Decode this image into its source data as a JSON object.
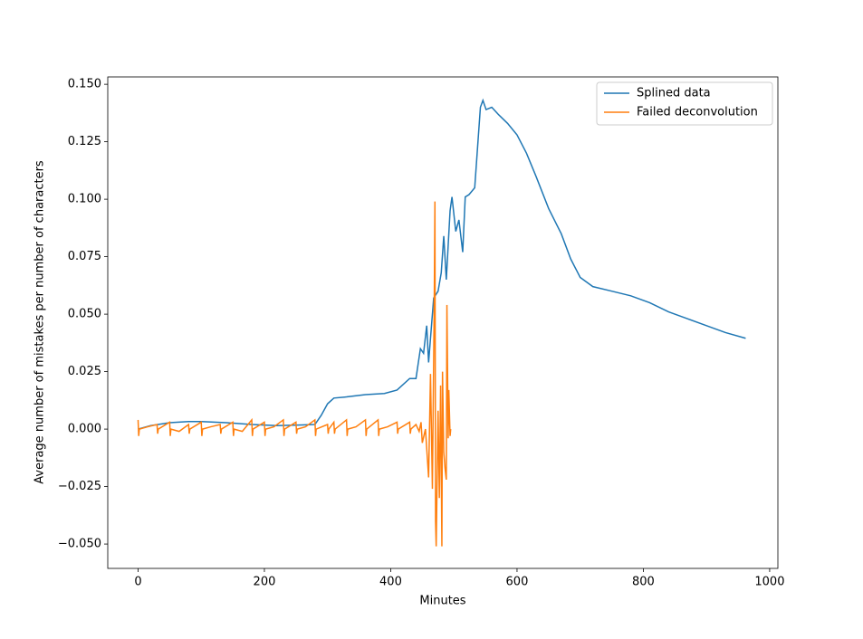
{
  "chart_data": {
    "type": "line",
    "xlabel": "Minutes",
    "ylabel": "Average number of mistakes per number of characters",
    "xlim": [
      -48,
      1013
    ],
    "ylim": [
      -0.0606,
      0.1532
    ],
    "xticks": [
      0,
      200,
      400,
      600,
      800,
      1000
    ],
    "yticks": [
      {
        "value": -0.05,
        "label": "−0.050"
      },
      {
        "value": -0.025,
        "label": "−0.025"
      },
      {
        "value": 0,
        "label": "0.000"
      },
      {
        "value": 0.025,
        "label": "0.025"
      },
      {
        "value": 0.05,
        "label": "0.050"
      },
      {
        "value": 0.075,
        "label": "0.075"
      },
      {
        "value": 0.1,
        "label": "0.100"
      },
      {
        "value": 0.125,
        "label": "0.125"
      },
      {
        "value": 0.15,
        "label": "0.150"
      }
    ],
    "legend": "upper right",
    "series": [
      {
        "name": "Splined data",
        "color": "#1f77b4",
        "x": [
          0,
          20,
          50,
          80,
          100,
          140,
          180,
          220,
          260,
          280,
          290,
          300,
          310,
          330,
          360,
          390,
          410,
          430,
          440,
          447,
          452,
          457,
          460,
          468,
          475,
          480,
          484,
          488,
          494,
          497,
          503,
          508,
          514,
          518,
          524,
          533,
          542,
          546,
          551,
          560,
          570,
          585,
          600,
          615,
          630,
          650,
          670,
          685,
          700,
          720,
          750,
          780,
          810,
          840,
          870,
          900,
          930,
          962
        ],
        "values": [
          0.0,
          0.0015,
          0.0028,
          0.0033,
          0.0033,
          0.0028,
          0.002,
          0.0015,
          0.0018,
          0.002,
          0.006,
          0.011,
          0.0135,
          0.014,
          0.015,
          0.0155,
          0.017,
          0.022,
          0.022,
          0.035,
          0.033,
          0.045,
          0.029,
          0.057,
          0.06,
          0.068,
          0.084,
          0.065,
          0.095,
          0.101,
          0.086,
          0.091,
          0.077,
          0.101,
          0.102,
          0.105,
          0.14,
          0.143,
          0.139,
          0.14,
          0.137,
          0.133,
          0.128,
          0.12,
          0.11,
          0.096,
          0.085,
          0.074,
          0.066,
          0.062,
          0.06,
          0.058,
          0.055,
          0.051,
          0.048,
          0.045,
          0.042,
          0.0395
        ]
      },
      {
        "name": "Failed deconvolution",
        "color": "#ff7f0e",
        "x": [
          0,
          1,
          2,
          15,
          30,
          31,
          32,
          50,
          51,
          52,
          65,
          80,
          81,
          82,
          100,
          101,
          102,
          115,
          130,
          131,
          132,
          150,
          151,
          152,
          165,
          180,
          181,
          182,
          200,
          201,
          202,
          215,
          230,
          231,
          232,
          250,
          251,
          252,
          265,
          280,
          281,
          282,
          300,
          301,
          302,
          310,
          311,
          312,
          330,
          331,
          332,
          345,
          360,
          361,
          362,
          380,
          381,
          382,
          395,
          410,
          411,
          412,
          430,
          431,
          432,
          440,
          445,
          448,
          450,
          455,
          460,
          463,
          466,
          469,
          470,
          471,
          472,
          475,
          477,
          479,
          481,
          482,
          484,
          486,
          488,
          489,
          491,
          492,
          494,
          495
        ],
        "values": [
          0.004,
          -0.003,
          0,
          0.001,
          0.002,
          -0.002,
          0,
          0.003,
          -0.003,
          0,
          -0.001,
          0.002,
          -0.002,
          0,
          0.003,
          -0.003,
          0,
          0.001,
          0.002,
          -0.002,
          0,
          0.003,
          -0.003,
          0,
          -0.001,
          0.004,
          -0.003,
          0,
          0.003,
          -0.003,
          0,
          0.001,
          0.004,
          -0.003,
          0,
          0.003,
          -0.002,
          0,
          0.001,
          0.004,
          -0.003,
          0,
          0.002,
          -0.002,
          0,
          0.003,
          -0.002,
          0,
          0.004,
          -0.003,
          0,
          0.001,
          0.004,
          -0.003,
          0,
          0.004,
          -0.003,
          0,
          0.001,
          0.003,
          -0.002,
          0,
          0.003,
          -0.002,
          0,
          0.002,
          -0.001,
          0.003,
          -0.006,
          0.0,
          -0.021,
          0.024,
          -0.026,
          0.058,
          0.099,
          -0.04,
          -0.051,
          0.008,
          -0.03,
          0.019,
          -0.051,
          0.025,
          -0.01,
          -0.017,
          -0.022,
          0.054,
          -0.004,
          0.017,
          -0.003,
          0.0
        ]
      }
    ]
  }
}
